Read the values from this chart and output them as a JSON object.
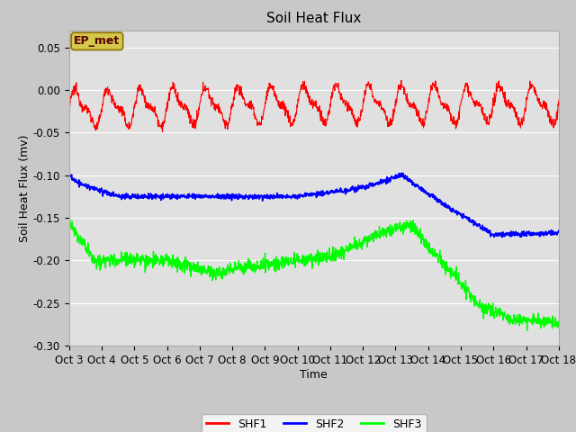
{
  "title": "Soil Heat Flux",
  "xlabel": "Time",
  "ylabel": "Soil Heat Flux (mv)",
  "ylim": [
    -0.3,
    0.07
  ],
  "yticks": [
    0.05,
    0.0,
    -0.05,
    -0.1,
    -0.15,
    -0.2,
    -0.25,
    -0.3
  ],
  "xtick_labels": [
    "Oct 3",
    "Oct 4",
    "Oct 5",
    "Oct 6",
    "Oct 7",
    "Oct 8",
    "Oct 9",
    "Oct 10",
    "Oct 11",
    "Oct 12",
    "Oct 13",
    "Oct 14",
    "Oct 15",
    "Oct 16",
    "Oct 17",
    "Oct 18"
  ],
  "annotation_text": "EP_met",
  "annotation_facecolor": "#d4c84a",
  "annotation_edgecolor": "#8b7000",
  "shf1_color": "red",
  "shf2_color": "blue",
  "shf3_color": "lime",
  "figure_facecolor": "#c8c8c8",
  "plot_facecolor": "#e0e0e0",
  "grid_color": "white",
  "legend_labels": [
    "SHF1",
    "SHF2",
    "SHF3"
  ],
  "title_fontsize": 11,
  "axis_label_fontsize": 9,
  "tick_fontsize": 8.5
}
